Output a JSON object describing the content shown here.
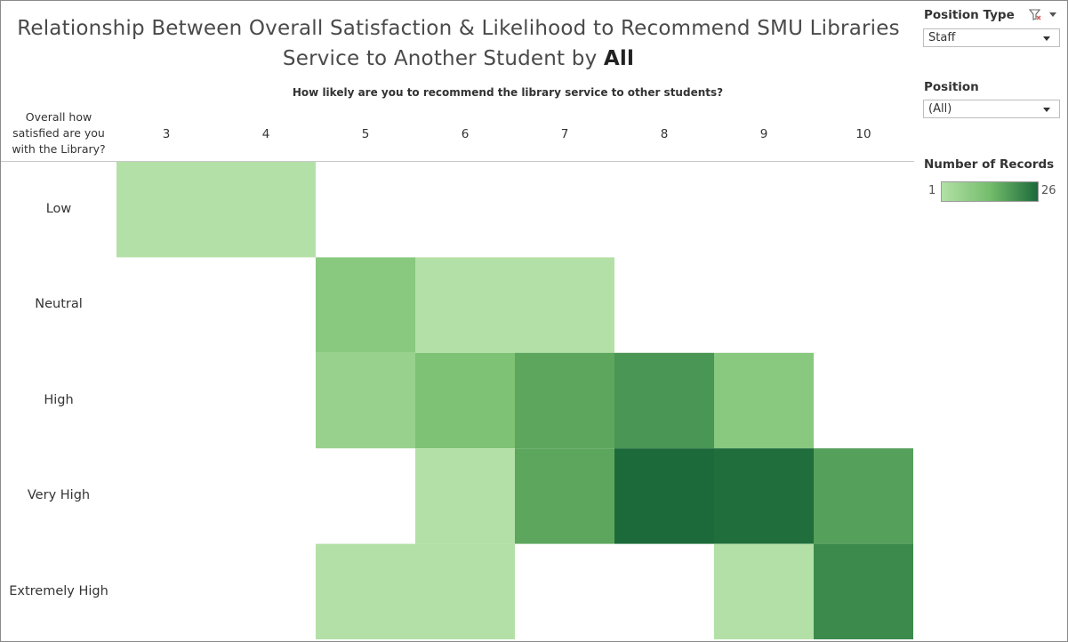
{
  "title": {
    "line1": "Relationship Between Overall Satisfaction & Likelihood to Recommend SMU Libraries",
    "line2_prefix": "Service to Another Student by ",
    "line2_value": "All"
  },
  "filters": {
    "position_type": {
      "label": "Position Type",
      "selected": "Staff"
    },
    "position": {
      "label": "Position",
      "selected": "(All)"
    }
  },
  "legend": {
    "title": "Number of Records",
    "min_label": "1",
    "max_label": "26",
    "colors": [
      "#b3e0a6",
      "#74bd6c",
      "#1c6a3a"
    ]
  },
  "chart_data": {
    "type": "heatmap",
    "x_title": "How likely are you to recommend the library service to other students?",
    "y_title": "Overall how satisfied are you with the Library?",
    "x_categories": [
      "3",
      "4",
      "5",
      "6",
      "7",
      "8",
      "9",
      "10"
    ],
    "y_categories": [
      "Low",
      "Neutral",
      "High",
      "Very High",
      "Extremely High"
    ],
    "value_range": [
      1,
      26
    ],
    "cells": [
      {
        "x": "3",
        "y": "Low",
        "value": 1
      },
      {
        "x": "4",
        "y": "Low",
        "value": 1
      },
      {
        "x": "5",
        "y": "Neutral",
        "value": 3
      },
      {
        "x": "6",
        "y": "Neutral",
        "value": 1
      },
      {
        "x": "7",
        "y": "Neutral",
        "value": 1
      },
      {
        "x": "5",
        "y": "High",
        "value": 2
      },
      {
        "x": "6",
        "y": "High",
        "value": 4
      },
      {
        "x": "7",
        "y": "High",
        "value": 8
      },
      {
        "x": "8",
        "y": "High",
        "value": 11
      },
      {
        "x": "9",
        "y": "High",
        "value": 3
      },
      {
        "x": "6",
        "y": "Very High",
        "value": 1
      },
      {
        "x": "7",
        "y": "Very High",
        "value": 8
      },
      {
        "x": "8",
        "y": "Very High",
        "value": 26
      },
      {
        "x": "9",
        "y": "Very High",
        "value": 24
      },
      {
        "x": "10",
        "y": "Very High",
        "value": 9
      },
      {
        "x": "5",
        "y": "Extremely High",
        "value": 1
      },
      {
        "x": "6",
        "y": "Extremely High",
        "value": 1
      },
      {
        "x": "9",
        "y": "Extremely High",
        "value": 1
      },
      {
        "x": "10",
        "y": "Extremely High",
        "value": 14
      }
    ]
  }
}
